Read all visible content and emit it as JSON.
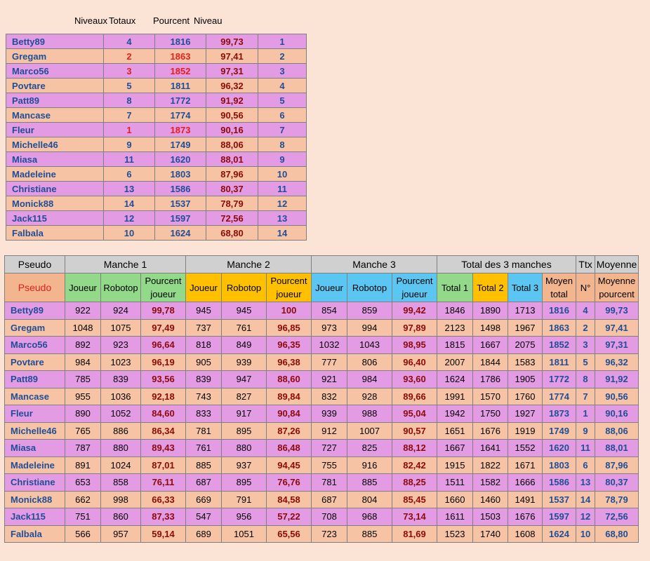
{
  "top_headers": {
    "niveaux": "Niveaux",
    "totaux": "Totaux",
    "pourcent": "Pourcent",
    "niveau": "Niveau"
  },
  "top_rows": [
    {
      "name": "Betty89",
      "niv": "4",
      "tot": "1816",
      "pct": "99,73",
      "rank": "1",
      "hl": false
    },
    {
      "name": "Gregam",
      "niv": "2",
      "tot": "1863",
      "pct": "97,41",
      "rank": "2",
      "hl": true
    },
    {
      "name": "Marco56",
      "niv": "3",
      "tot": "1852",
      "pct": "97,31",
      "rank": "3",
      "hl": true
    },
    {
      "name": "Povtare",
      "niv": "5",
      "tot": "1811",
      "pct": "96,32",
      "rank": "4",
      "hl": false
    },
    {
      "name": "Patt89",
      "niv": "8",
      "tot": "1772",
      "pct": "91,92",
      "rank": "5",
      "hl": false
    },
    {
      "name": "Mancase",
      "niv": "7",
      "tot": "1774",
      "pct": "90,56",
      "rank": "6",
      "hl": false
    },
    {
      "name": "Fleur",
      "niv": "1",
      "tot": "1873",
      "pct": "90,16",
      "rank": "7",
      "hl": true
    },
    {
      "name": "Michelle46",
      "niv": "9",
      "tot": "1749",
      "pct": "88,06",
      "rank": "8",
      "hl": false
    },
    {
      "name": "Miasa",
      "niv": "11",
      "tot": "1620",
      "pct": "88,01",
      "rank": "9",
      "hl": false
    },
    {
      "name": "Madeleine",
      "niv": "6",
      "tot": "1803",
      "pct": "87,96",
      "rank": "10",
      "hl": false
    },
    {
      "name": "Christiane",
      "niv": "13",
      "tot": "1586",
      "pct": "80,37",
      "rank": "11",
      "hl": false
    },
    {
      "name": "Monick88",
      "niv": "14",
      "tot": "1537",
      "pct": "78,79",
      "rank": "12",
      "hl": false
    },
    {
      "name": "Jack115",
      "niv": "12",
      "tot": "1597",
      "pct": "72,56",
      "rank": "13",
      "hl": false
    },
    {
      "name": "Falbala",
      "niv": "10",
      "tot": "1624",
      "pct": "68,80",
      "rank": "14",
      "hl": false
    }
  ],
  "group_headers": [
    "Pseudo",
    "Manche 1",
    "Manche  2",
    "Manche 3",
    "Total des 3 manches",
    "Ttx",
    "Moyenne"
  ],
  "sub_headers": [
    "Pseudo",
    "Joueur",
    "Robotop",
    "Pourcent joueur",
    "Joueur",
    "Robotop",
    "Pourcent joueur",
    "Joueur",
    "Robotop",
    "Pourcent joueur",
    "Total 1",
    "Total 2",
    "Total 3",
    "Moyen total",
    "N°",
    "Moyenne pourcent"
  ],
  "rows": [
    [
      "Betty89",
      "922",
      "924",
      "99,78",
      "945",
      "945",
      "100",
      "854",
      "859",
      "99,42",
      "1846",
      "1890",
      "1713",
      "1816",
      "4",
      "99,73"
    ],
    [
      "Gregam",
      "1048",
      "1075",
      "97,49",
      "737",
      "761",
      "96,85",
      "973",
      "994",
      "97,89",
      "2123",
      "1498",
      "1967",
      "1863",
      "2",
      "97,41"
    ],
    [
      "Marco56",
      "892",
      "923",
      "96,64",
      "818",
      "849",
      "96,35",
      "1032",
      "1043",
      "98,95",
      "1815",
      "1667",
      "2075",
      "1852",
      "3",
      "97,31"
    ],
    [
      "Povtare",
      "984",
      "1023",
      "96,19",
      "905",
      "939",
      "96,38",
      "777",
      "806",
      "96,40",
      "2007",
      "1844",
      "1583",
      "1811",
      "5",
      "96,32"
    ],
    [
      "Patt89",
      "785",
      "839",
      "93,56",
      "839",
      "947",
      "88,60",
      "921",
      "984",
      "93,60",
      "1624",
      "1786",
      "1905",
      "1772",
      "8",
      "91,92"
    ],
    [
      "Mancase",
      "955",
      "1036",
      "92,18",
      "743",
      "827",
      "89,84",
      "832",
      "928",
      "89,66",
      "1991",
      "1570",
      "1760",
      "1774",
      "7",
      "90,56"
    ],
    [
      "Fleur",
      "890",
      "1052",
      "84,60",
      "833",
      "917",
      "90,84",
      "939",
      "988",
      "95,04",
      "1942",
      "1750",
      "1927",
      "1873",
      "1",
      "90,16"
    ],
    [
      "Michelle46",
      "765",
      "886",
      "86,34",
      "781",
      "895",
      "87,26",
      "912",
      "1007",
      "90,57",
      "1651",
      "1676",
      "1919",
      "1749",
      "9",
      "88,06"
    ],
    [
      "Miasa",
      "787",
      "880",
      "89,43",
      "761",
      "880",
      "86,48",
      "727",
      "825",
      "88,12",
      "1667",
      "1641",
      "1552",
      "1620",
      "11",
      "88,01"
    ],
    [
      "Madeleine",
      "891",
      "1024",
      "87,01",
      "885",
      "937",
      "94,45",
      "755",
      "916",
      "82,42",
      "1915",
      "1822",
      "1671",
      "1803",
      "6",
      "87,96"
    ],
    [
      "Christiane",
      "653",
      "858",
      "76,11",
      "687",
      "895",
      "76,76",
      "781",
      "885",
      "88,25",
      "1511",
      "1582",
      "1666",
      "1586",
      "13",
      "80,37"
    ],
    [
      "Monick88",
      "662",
      "998",
      "66,33",
      "669",
      "791",
      "84,58",
      "687",
      "804",
      "85,45",
      "1660",
      "1460",
      "1491",
      "1537",
      "14",
      "78,79"
    ],
    [
      "Jack115",
      "751",
      "860",
      "87,33",
      "547",
      "956",
      "57,22",
      "708",
      "968",
      "73,14",
      "1611",
      "1503",
      "1676",
      "1597",
      "12",
      "72,56"
    ],
    [
      "Falbala",
      "566",
      "957",
      "59,14",
      "689",
      "1051",
      "65,56",
      "723",
      "885",
      "81,69",
      "1523",
      "1740",
      "1608",
      "1624",
      "10",
      "68,80"
    ]
  ],
  "colors": {
    "pink": "#e39be3",
    "peach": "#f6c4a4",
    "background": "#fbe3d6",
    "green": "#92d98a",
    "yellow": "#ffc000",
    "blue": "#5cc6f2",
    "grey": "#d0d0d0"
  }
}
